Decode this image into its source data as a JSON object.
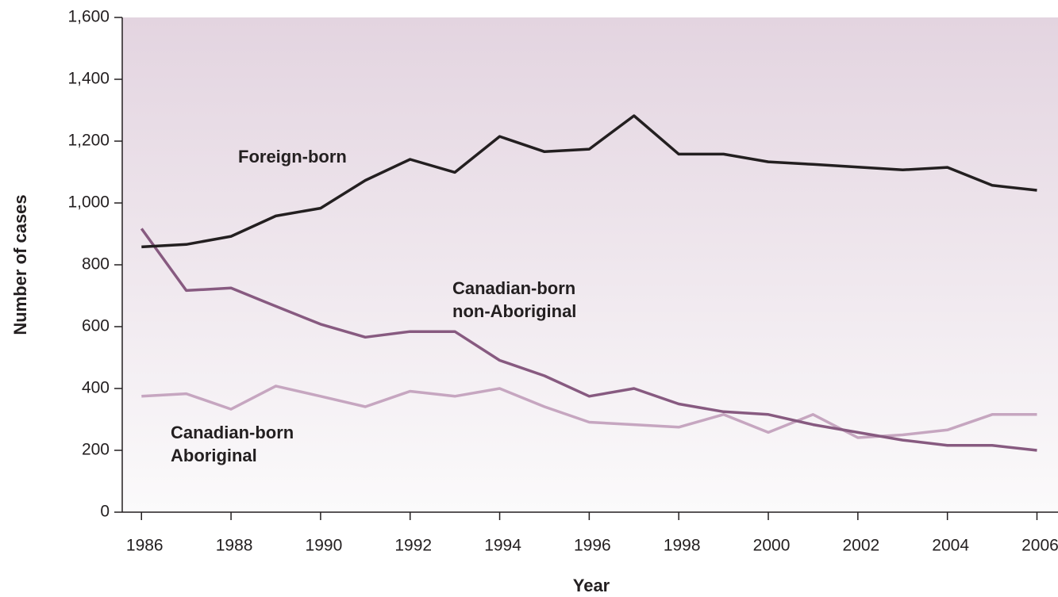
{
  "chart_data": {
    "type": "line",
    "x_label": "Year",
    "y_label": "Number of cases",
    "x": [
      1986,
      1987,
      1988,
      1989,
      1990,
      1991,
      1992,
      1993,
      1994,
      1995,
      1996,
      1997,
      1998,
      1999,
      2000,
      2001,
      2002,
      2003,
      2004,
      2005,
      2006
    ],
    "series": [
      {
        "name": "Foreign-born",
        "color": "#231f20",
        "values": [
          858,
          866,
          892,
          958,
          983,
          1073,
          1141,
          1099,
          1215,
          1166,
          1174,
          1282,
          1158,
          1158,
          1133,
          1125,
          1116,
          1107,
          1115,
          1057,
          1041
        ]
      },
      {
        "name": "Canadian-born non-Aboriginal",
        "color": "#875a80",
        "values": [
          917,
          717,
          725,
          666,
          608,
          566,
          584,
          584,
          491,
          441,
          375,
          400,
          350,
          325,
          316,
          283,
          258,
          233,
          216,
          216,
          200
        ]
      },
      {
        "name": "Canadian-born Aboriginal",
        "color": "#c6a6c0",
        "values": [
          375,
          383,
          333,
          408,
          375,
          341,
          391,
          375,
          400,
          341,
          291,
          283,
          275,
          316,
          258,
          316,
          241,
          250,
          266,
          316,
          316
        ]
      }
    ],
    "xlim": [
      1985.57,
      2006.47
    ],
    "xticks": [
      1986,
      1988,
      1990,
      1992,
      1994,
      1996,
      1998,
      2000,
      2002,
      2004,
      2006
    ],
    "ylim": [
      0,
      1600
    ],
    "yticks": [
      0,
      200,
      400,
      600,
      800,
      {
        "value": 1000,
        "label": "1,000"
      },
      {
        "value": 1200,
        "label": "1,200"
      },
      {
        "value": 1400,
        "label": "1,400"
      },
      {
        "value": 1600,
        "label": "1,600"
      }
    ],
    "grid": false
  }
}
